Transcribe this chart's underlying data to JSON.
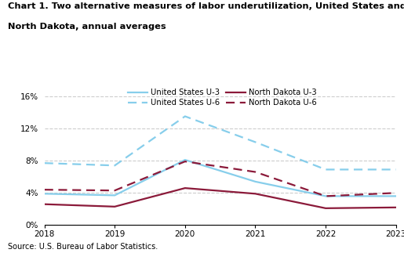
{
  "title_line1": "Chart 1. Two alternative measures of labor underutilization, United States and",
  "title_line2": "North Dakota, annual averages",
  "years": [
    2018,
    2019,
    2020,
    2021,
    2022,
    2023
  ],
  "us_u3": [
    3.9,
    3.7,
    8.1,
    5.4,
    3.6,
    3.6
  ],
  "us_u6": [
    7.7,
    7.4,
    13.5,
    10.3,
    6.9,
    6.9
  ],
  "nd_u3": [
    2.6,
    2.3,
    4.6,
    3.9,
    2.1,
    2.2
  ],
  "nd_u6": [
    4.4,
    4.3,
    7.9,
    6.6,
    3.6,
    4.0
  ],
  "color_us": "#87CEEB",
  "color_nd": "#8B1A3A",
  "ylim": [
    0,
    16
  ],
  "yticks": [
    0,
    4,
    8,
    12,
    16
  ],
  "ytick_labels": [
    "0%",
    "4%",
    "8%",
    "12%",
    "16%"
  ],
  "source": "Source: U.S. Bureau of Labor Statistics.",
  "legend_entries": [
    "United States U-3",
    "United States U-6",
    "North Dakota U-3",
    "North Dakota U-6"
  ]
}
